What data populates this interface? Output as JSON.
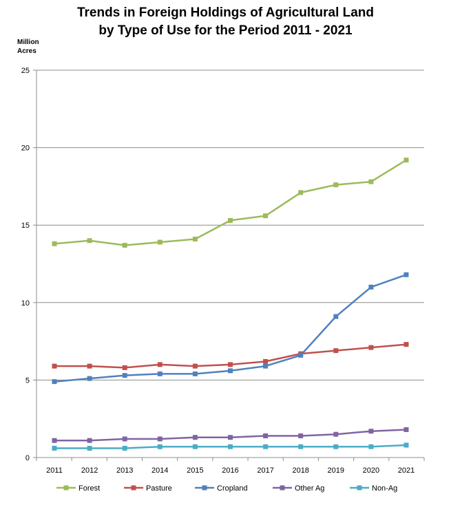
{
  "chart_data": {
    "type": "line",
    "title_line1": "Trends in Foreign Holdings of Agricultural Land",
    "title_line2": "by Type of Use for the Period 2011 - 2021",
    "ylabel_line1": "Million",
    "ylabel_line2": "Acres",
    "xlabel": "",
    "ylim": [
      0,
      25
    ],
    "yticks": [
      0,
      5,
      10,
      15,
      20,
      25
    ],
    "grid": true,
    "legend_position": "bottom",
    "categories": [
      "2011",
      "2012",
      "2013",
      "2014",
      "2015",
      "2016",
      "2017",
      "2018",
      "2019",
      "2020",
      "2021"
    ],
    "series": [
      {
        "name": "Forest",
        "color": "#9BBB59",
        "values": [
          13.8,
          14.0,
          13.7,
          13.9,
          14.1,
          15.3,
          15.6,
          17.1,
          17.6,
          17.8,
          19.2
        ]
      },
      {
        "name": "Pasture",
        "color": "#C0504D",
        "values": [
          5.9,
          5.9,
          5.8,
          6.0,
          5.9,
          6.0,
          6.2,
          6.7,
          6.9,
          7.1,
          7.3
        ]
      },
      {
        "name": "Cropland",
        "color": "#4F81BD",
        "values": [
          4.9,
          5.1,
          5.3,
          5.4,
          5.4,
          5.6,
          5.9,
          6.6,
          9.1,
          11.0,
          11.8
        ]
      },
      {
        "name": "Other Ag",
        "color": "#8064A2",
        "values": [
          1.1,
          1.1,
          1.2,
          1.2,
          1.3,
          1.3,
          1.4,
          1.4,
          1.5,
          1.7,
          1.8
        ]
      },
      {
        "name": "Non-Ag",
        "color": "#4BACC6",
        "values": [
          0.6,
          0.6,
          0.6,
          0.7,
          0.7,
          0.7,
          0.7,
          0.7,
          0.7,
          0.7,
          0.8
        ]
      }
    ]
  }
}
